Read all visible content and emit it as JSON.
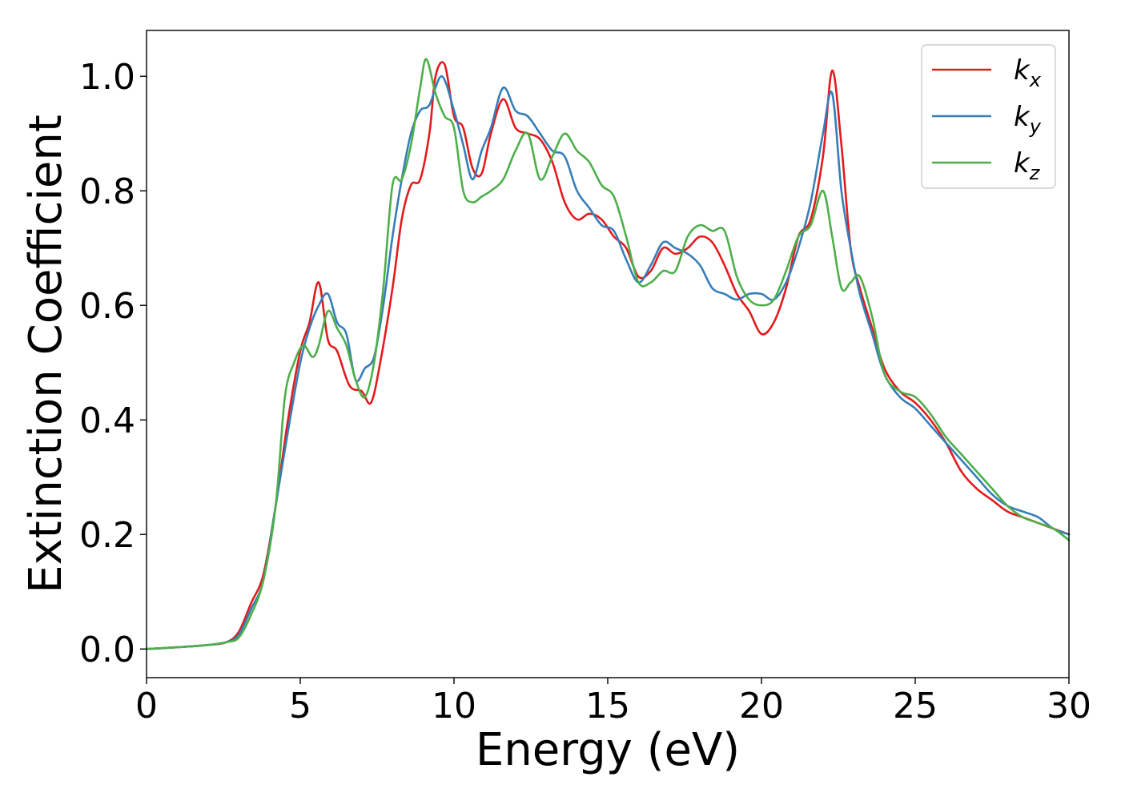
{
  "chart_data": {
    "type": "line",
    "title": "",
    "xlabel": "Energy (eV)",
    "ylabel": "Extinction Coefficient",
    "xlim": [
      0,
      30
    ],
    "ylim": [
      -0.05,
      1.08
    ],
    "xticks": [
      0,
      5,
      10,
      15,
      20,
      25,
      30
    ],
    "xtick_labels": [
      "0",
      "5",
      "10",
      "15",
      "20",
      "25",
      "30"
    ],
    "yticks": [
      0.0,
      0.2,
      0.4,
      0.6,
      0.8,
      1.0
    ],
    "ytick_labels": [
      "0.0",
      "0.2",
      "0.4",
      "0.6",
      "0.8",
      "1.0"
    ],
    "grid": false,
    "legend_position": "top-right",
    "series": [
      {
        "name": "k",
        "subscript": "x",
        "color": "#e41a1c",
        "x": [
          0,
          1,
          2,
          2.6,
          3,
          3.4,
          3.8,
          4.2,
          4.6,
          5,
          5.3,
          5.6,
          5.9,
          6.2,
          6.6,
          7,
          7.3,
          7.6,
          8,
          8.3,
          8.6,
          8.9,
          9.2,
          9.4,
          9.7,
          10,
          10.3,
          10.6,
          10.9,
          11.2,
          11.6,
          12,
          12.4,
          12.8,
          13.2,
          13.6,
          14,
          14.4,
          14.8,
          15.2,
          15.6,
          16,
          16.4,
          16.8,
          17.2,
          17.6,
          18,
          18.4,
          18.8,
          19.2,
          19.6,
          20,
          20.4,
          20.8,
          21.2,
          21.6,
          22,
          22.3,
          22.6,
          22.9,
          23.2,
          23.6,
          24,
          24.5,
          25,
          25.5,
          26,
          26.5,
          27,
          27.5,
          28,
          28.5,
          29,
          29.5,
          30
        ],
        "y": [
          0,
          0.003,
          0.007,
          0.012,
          0.03,
          0.08,
          0.13,
          0.25,
          0.4,
          0.52,
          0.57,
          0.64,
          0.54,
          0.52,
          0.46,
          0.45,
          0.43,
          0.5,
          0.63,
          0.75,
          0.81,
          0.82,
          0.9,
          1.0,
          1.02,
          0.93,
          0.91,
          0.84,
          0.83,
          0.9,
          0.96,
          0.91,
          0.9,
          0.89,
          0.85,
          0.78,
          0.75,
          0.76,
          0.75,
          0.72,
          0.7,
          0.65,
          0.66,
          0.7,
          0.69,
          0.7,
          0.72,
          0.71,
          0.67,
          0.62,
          0.59,
          0.55,
          0.57,
          0.63,
          0.72,
          0.75,
          0.86,
          1.01,
          0.88,
          0.7,
          0.63,
          0.56,
          0.49,
          0.45,
          0.43,
          0.4,
          0.36,
          0.31,
          0.28,
          0.26,
          0.24,
          0.23,
          0.22,
          0.21,
          0.2
        ]
      },
      {
        "name": "k",
        "subscript": "y",
        "color": "#377eb8",
        "x": [
          0,
          1,
          2,
          2.6,
          3,
          3.4,
          3.8,
          4.2,
          4.6,
          5,
          5.3,
          5.6,
          5.9,
          6.2,
          6.5,
          6.8,
          7.1,
          7.4,
          7.7,
          8,
          8.3,
          8.6,
          8.9,
          9.2,
          9.6,
          10,
          10.3,
          10.6,
          10.9,
          11.2,
          11.6,
          12,
          12.4,
          12.8,
          13.2,
          13.6,
          14,
          14.4,
          14.8,
          15.2,
          15.6,
          16,
          16.4,
          16.8,
          17.2,
          17.6,
          18,
          18.4,
          18.8,
          19.2,
          19.6,
          20,
          20.4,
          20.8,
          21.2,
          21.6,
          22,
          22.3,
          22.6,
          22.9,
          23.2,
          23.6,
          24,
          24.5,
          25,
          25.5,
          26,
          26.5,
          27,
          27.5,
          28,
          28.5,
          29,
          29.5,
          30
        ],
        "y": [
          0,
          0.003,
          0.007,
          0.012,
          0.025,
          0.07,
          0.12,
          0.25,
          0.38,
          0.5,
          0.56,
          0.6,
          0.62,
          0.57,
          0.55,
          0.47,
          0.49,
          0.51,
          0.6,
          0.72,
          0.82,
          0.9,
          0.94,
          0.95,
          1.0,
          0.94,
          0.88,
          0.82,
          0.87,
          0.91,
          0.98,
          0.94,
          0.93,
          0.9,
          0.87,
          0.86,
          0.8,
          0.77,
          0.74,
          0.73,
          0.68,
          0.64,
          0.67,
          0.71,
          0.7,
          0.69,
          0.67,
          0.63,
          0.62,
          0.61,
          0.62,
          0.62,
          0.61,
          0.64,
          0.7,
          0.78,
          0.9,
          0.97,
          0.8,
          0.7,
          0.62,
          0.55,
          0.48,
          0.44,
          0.42,
          0.39,
          0.36,
          0.33,
          0.3,
          0.27,
          0.25,
          0.24,
          0.23,
          0.21,
          0.2
        ]
      },
      {
        "name": "k",
        "subscript": "z",
        "color": "#4daf4a",
        "x": [
          0,
          1,
          2,
          2.6,
          3,
          3.4,
          3.8,
          4.2,
          4.5,
          4.8,
          5.1,
          5.4,
          5.6,
          5.9,
          6.2,
          6.5,
          6.8,
          7.1,
          7.4,
          7.7,
          8,
          8.3,
          8.6,
          8.9,
          9.1,
          9.4,
          9.7,
          10,
          10.3,
          10.6,
          10.9,
          11.2,
          11.6,
          12,
          12.4,
          12.8,
          13.2,
          13.6,
          14,
          14.4,
          14.8,
          15.2,
          15.6,
          16,
          16.4,
          16.8,
          17.2,
          17.6,
          18,
          18.4,
          18.8,
          19.2,
          19.6,
          20,
          20.4,
          20.8,
          21.2,
          21.6,
          22,
          22.3,
          22.6,
          22.9,
          23.2,
          23.6,
          24,
          24.5,
          25,
          25.5,
          26,
          26.5,
          27,
          27.5,
          28,
          28.5,
          29,
          29.5,
          30
        ],
        "y": [
          0,
          0.003,
          0.007,
          0.012,
          0.02,
          0.06,
          0.12,
          0.25,
          0.44,
          0.5,
          0.53,
          0.51,
          0.53,
          0.59,
          0.56,
          0.53,
          0.47,
          0.44,
          0.5,
          0.63,
          0.81,
          0.82,
          0.88,
          0.98,
          1.03,
          0.97,
          0.93,
          0.91,
          0.8,
          0.78,
          0.79,
          0.8,
          0.82,
          0.87,
          0.9,
          0.82,
          0.86,
          0.9,
          0.87,
          0.85,
          0.81,
          0.79,
          0.72,
          0.64,
          0.64,
          0.66,
          0.66,
          0.72,
          0.74,
          0.73,
          0.73,
          0.65,
          0.61,
          0.6,
          0.61,
          0.66,
          0.72,
          0.74,
          0.8,
          0.72,
          0.63,
          0.64,
          0.65,
          0.58,
          0.48,
          0.45,
          0.44,
          0.41,
          0.37,
          0.34,
          0.31,
          0.28,
          0.25,
          0.23,
          0.22,
          0.21,
          0.19
        ]
      }
    ]
  }
}
